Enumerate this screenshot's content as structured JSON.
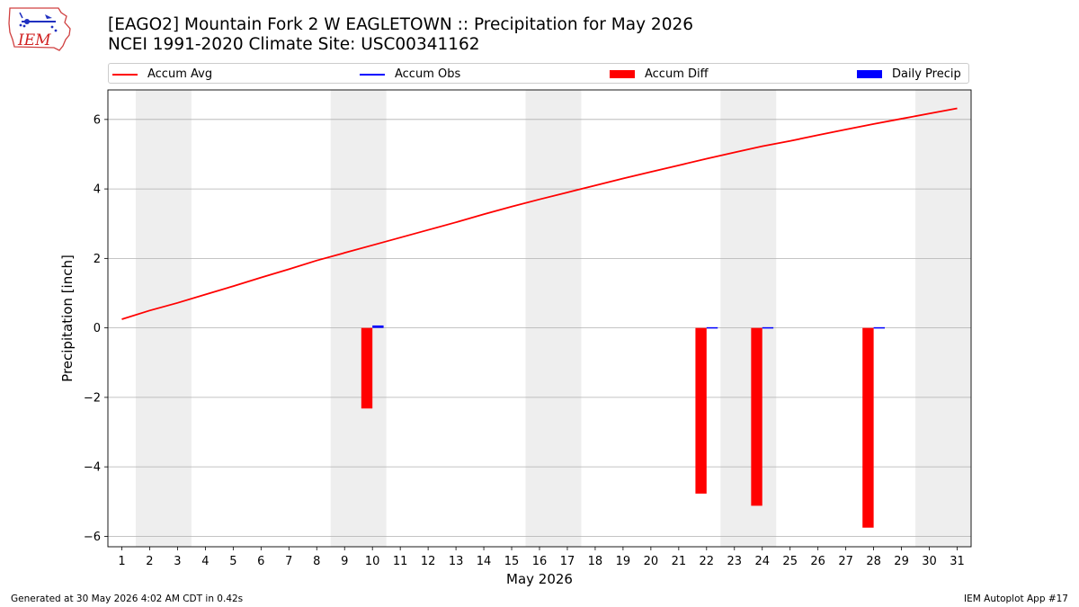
{
  "title_line1": "[EAGO2] Mountain Fork 2 W EAGLETOWN :: Precipitation for May 2026",
  "title_line2": "NCEI 1991-2020 Climate Site: USC00341162",
  "logo_text": "IEM",
  "footer_left": "Generated at 30 May 2026 4:02 AM CDT in 0.42s",
  "footer_right": "IEM Autoplot App #17",
  "colors": {
    "accum_avg": "#ff0000",
    "accum_obs": "#0000ff",
    "accum_diff": "#ff0000",
    "daily_precip": "#0000ff",
    "weekend_shade": "#eeeeee",
    "grid": "#b0b0b0"
  },
  "legend": [
    {
      "key": "accum_avg",
      "label": "Accum Avg",
      "kind": "line"
    },
    {
      "key": "accum_obs",
      "label": "Accum Obs",
      "kind": "line"
    },
    {
      "key": "accum_diff",
      "label": "Accum Diff",
      "kind": "box"
    },
    {
      "key": "daily_precip",
      "label": "Daily Precip",
      "kind": "box"
    }
  ],
  "chart_data": {
    "type": "line",
    "xlabel": "May 2026",
    "ylabel": "Precipitation [inch]",
    "xlim": [
      0.5,
      31.5
    ],
    "ylim": [
      -6.3,
      6.85
    ],
    "x": [
      1,
      2,
      3,
      4,
      5,
      6,
      7,
      8,
      9,
      10,
      11,
      12,
      13,
      14,
      15,
      16,
      17,
      18,
      19,
      20,
      21,
      22,
      23,
      24,
      25,
      26,
      27,
      28,
      29,
      30,
      31
    ],
    "yticks": [
      -6,
      -4,
      -2,
      0,
      2,
      4,
      6
    ],
    "ytick_labels": [
      "−6",
      "−4",
      "−2",
      "0",
      "2",
      "4",
      "6"
    ],
    "weekend_spans": [
      [
        1.5,
        3.5
      ],
      [
        8.5,
        10.5
      ],
      [
        15.5,
        17.5
      ],
      [
        22.5,
        24.5
      ],
      [
        29.5,
        31.5
      ]
    ],
    "grid": "horizontal",
    "series": [
      {
        "name": "Accum Avg",
        "type": "line",
        "values": [
          0.25,
          0.5,
          0.72,
          0.96,
          1.2,
          1.45,
          1.69,
          1.94,
          2.16,
          2.38,
          2.6,
          2.82,
          3.04,
          3.27,
          3.49,
          3.7,
          3.9,
          4.1,
          4.3,
          4.49,
          4.68,
          4.87,
          5.05,
          5.23,
          5.38,
          5.55,
          5.71,
          5.87,
          6.02,
          6.17,
          6.32
        ]
      },
      {
        "name": "Accum Diff",
        "type": "bar",
        "points": [
          {
            "x": 10,
            "value": -2.32
          },
          {
            "x": 22,
            "value": -4.77
          },
          {
            "x": 24,
            "value": -5.12
          },
          {
            "x": 28,
            "value": -5.75
          }
        ]
      },
      {
        "name": "Daily Precip",
        "type": "bar",
        "points": [
          {
            "x": 10,
            "value": 0.07
          },
          {
            "x": 22,
            "value": 0.02
          },
          {
            "x": 24,
            "value": 0.02
          },
          {
            "x": 28,
            "value": 0.02
          }
        ]
      }
    ]
  }
}
